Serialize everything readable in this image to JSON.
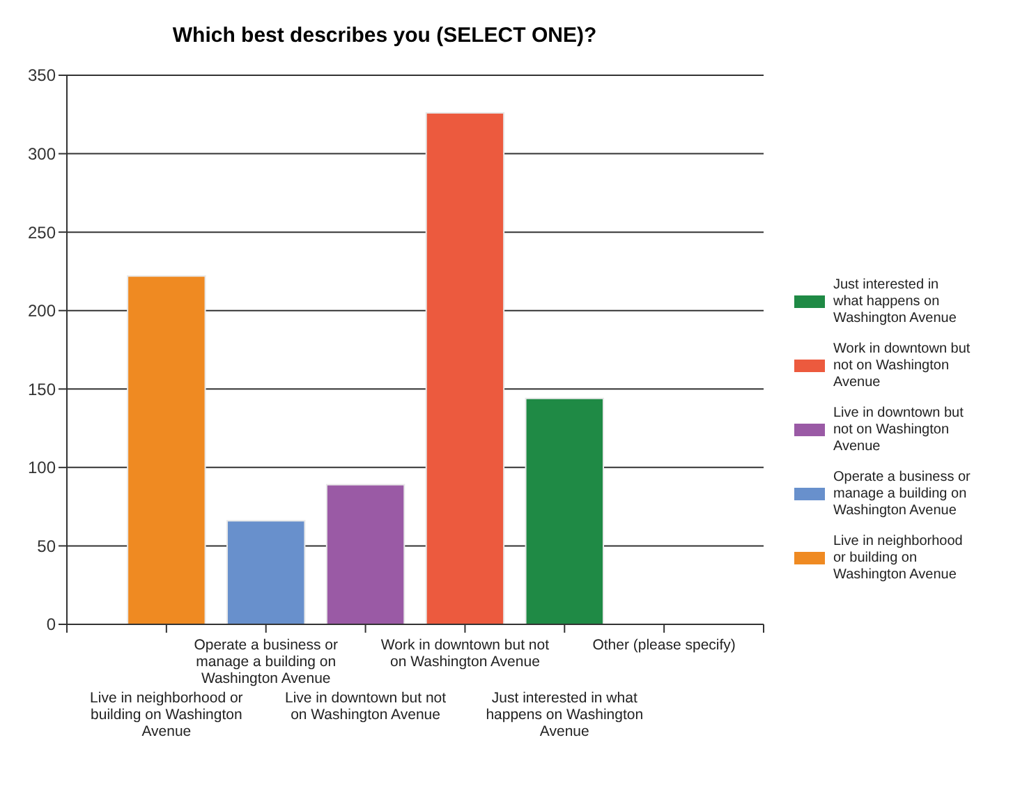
{
  "chart_data": {
    "type": "bar",
    "title": "Which best describes you (SELECT ONE)?",
    "categories": [
      "Live in neighborhood or building on Washington Avenue",
      "Operate a business or manage a building on Washington Avenue",
      "Live in downtown but not on Washington Avenue",
      "Work in downtown but not on Washington Avenue",
      "Just interested in what happens on Washington Avenue",
      "Other (please specify)"
    ],
    "series": [
      {
        "name": "Live in neighborhood or building on Washington Avenue",
        "color": "#ef8a22",
        "values": [
          222,
          null,
          null,
          null,
          null,
          null
        ]
      },
      {
        "name": "Operate a business or manage a building on Washington Avenue",
        "color": "#6890cc",
        "values": [
          null,
          66,
          null,
          null,
          null,
          null
        ]
      },
      {
        "name": "Live in downtown but not on Washington Avenue",
        "color": "#9a5aa5",
        "values": [
          null,
          null,
          89,
          null,
          null,
          null
        ]
      },
      {
        "name": "Work in downtown but not on Washington Avenue",
        "color": "#ec5a3e",
        "values": [
          null,
          null,
          null,
          326,
          null,
          null
        ]
      },
      {
        "name": "Just interested in what happens on Washington Avenue",
        "color": "#1f8a45",
        "values": [
          null,
          null,
          null,
          null,
          144,
          null
        ]
      }
    ],
    "ylim": [
      0,
      350
    ],
    "yticks": [
      0,
      50,
      100,
      150,
      200,
      250,
      300,
      350
    ],
    "grid": "y",
    "legend": "right"
  }
}
